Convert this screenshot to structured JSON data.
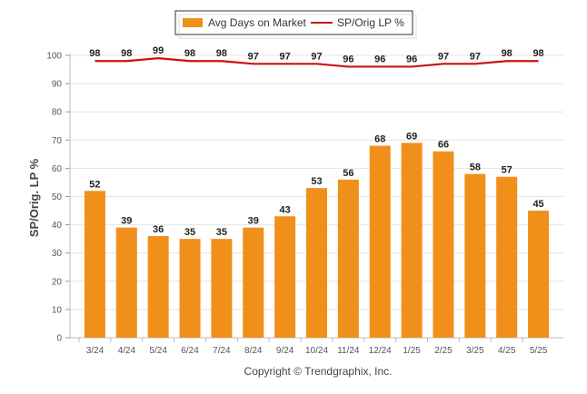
{
  "chart_data": {
    "type": "bar",
    "categories": [
      "3/24",
      "4/24",
      "5/24",
      "6/24",
      "7/24",
      "8/24",
      "9/24",
      "10/24",
      "11/24",
      "12/24",
      "1/25",
      "2/25",
      "3/25",
      "4/25",
      "5/25"
    ],
    "series": [
      {
        "name": "Avg Days on Market",
        "type": "bar",
        "color": "#f0901a",
        "values": [
          52,
          39,
          36,
          35,
          35,
          39,
          43,
          53,
          56,
          68,
          69,
          66,
          58,
          57,
          45
        ]
      },
      {
        "name": "SP/Orig LP %",
        "type": "line",
        "color": "#cc1111",
        "values": [
          98,
          98,
          99,
          98,
          98,
          97,
          97,
          97,
          96,
          96,
          96,
          97,
          97,
          98,
          98
        ]
      }
    ],
    "ylabel": "SP/Orig. LP %",
    "xlabel": "",
    "ylim": [
      0,
      100
    ],
    "yticks": [
      0,
      10,
      20,
      30,
      40,
      50,
      60,
      70,
      80,
      90,
      100
    ],
    "grid": true,
    "legend": "top-center"
  },
  "footer": {
    "copyright": "Copyright © Trendgraphix, Inc."
  }
}
